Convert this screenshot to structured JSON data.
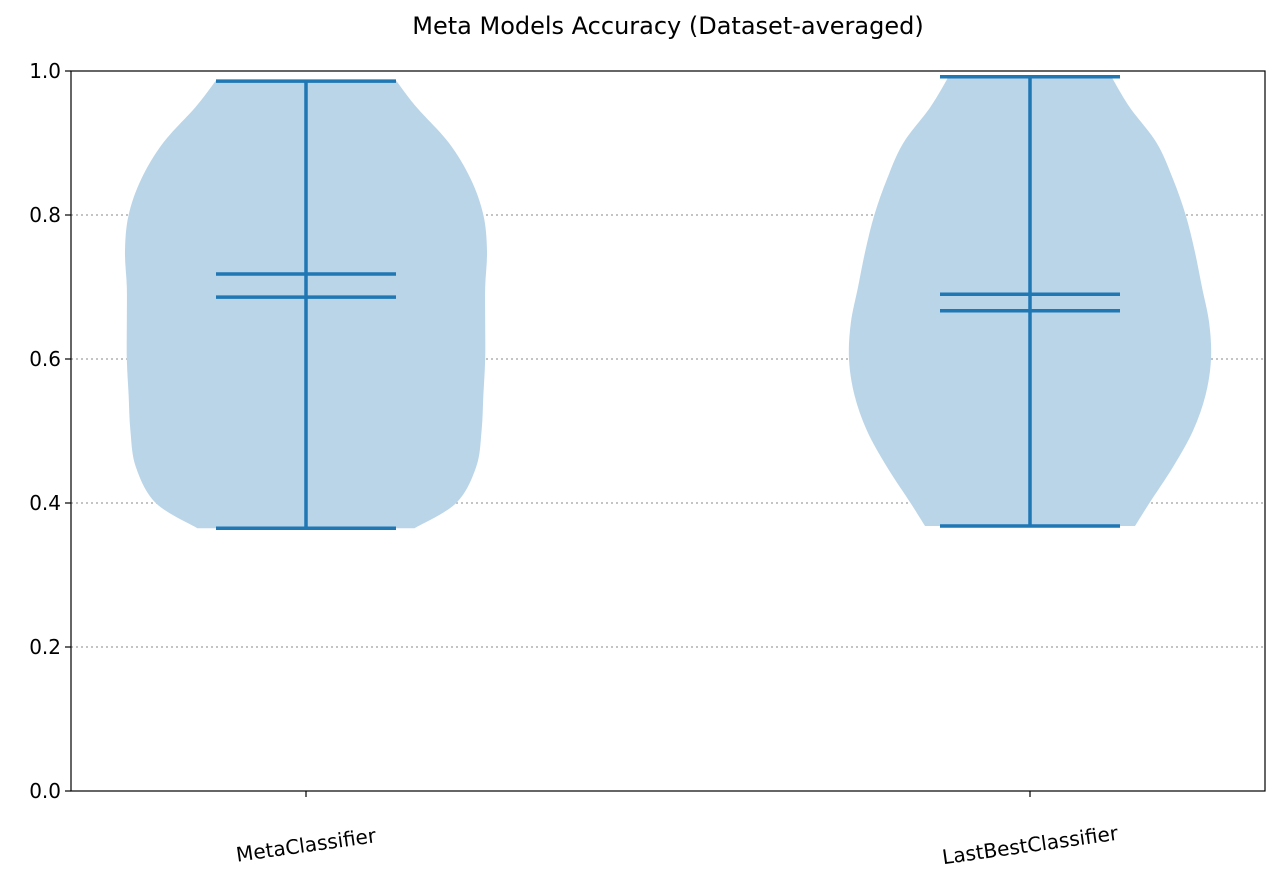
{
  "chart_data": {
    "type": "violin",
    "title": "Meta Models Accuracy (Dataset-averaged)",
    "xlabel": "",
    "ylabel": "",
    "ylim": [
      0,
      1
    ],
    "yticks": [
      "0.0",
      "0.2",
      "0.4",
      "0.6",
      "0.8",
      "1.0"
    ],
    "grid": "horizontal-dotted",
    "body_color": "#bad5e8",
    "line_color": "#1f77b4",
    "categories": [
      "MetaClassifier",
      "LastBestClassifier"
    ],
    "violins": [
      {
        "category": "MetaClassifier",
        "min": 0.365,
        "max": 0.986,
        "mean": 0.718,
        "median": 0.686,
        "density": [
          {
            "y": 0.365,
            "w": 0.6
          },
          {
            "y": 0.4,
            "w": 0.83
          },
          {
            "y": 0.45,
            "w": 0.94
          },
          {
            "y": 0.5,
            "w": 0.97
          },
          {
            "y": 0.55,
            "w": 0.98
          },
          {
            "y": 0.6,
            "w": 0.99
          },
          {
            "y": 0.65,
            "w": 0.99
          },
          {
            "y": 0.7,
            "w": 0.99
          },
          {
            "y": 0.75,
            "w": 1.0
          },
          {
            "y": 0.8,
            "w": 0.98
          },
          {
            "y": 0.85,
            "w": 0.91
          },
          {
            "y": 0.9,
            "w": 0.79
          },
          {
            "y": 0.95,
            "w": 0.61
          },
          {
            "y": 0.986,
            "w": 0.5
          }
        ]
      },
      {
        "category": "LastBestClassifier",
        "min": 0.368,
        "max": 0.992,
        "mean": 0.69,
        "median": 0.667,
        "density": [
          {
            "y": 0.368,
            "w": 0.58
          },
          {
            "y": 0.4,
            "w": 0.66
          },
          {
            "y": 0.45,
            "w": 0.79
          },
          {
            "y": 0.5,
            "w": 0.9
          },
          {
            "y": 0.55,
            "w": 0.97
          },
          {
            "y": 0.6,
            "w": 1.0
          },
          {
            "y": 0.65,
            "w": 0.99
          },
          {
            "y": 0.7,
            "w": 0.95
          },
          {
            "y": 0.75,
            "w": 0.91
          },
          {
            "y": 0.8,
            "w": 0.86
          },
          {
            "y": 0.85,
            "w": 0.79
          },
          {
            "y": 0.9,
            "w": 0.7
          },
          {
            "y": 0.95,
            "w": 0.55
          },
          {
            "y": 0.992,
            "w": 0.45
          }
        ]
      }
    ]
  }
}
